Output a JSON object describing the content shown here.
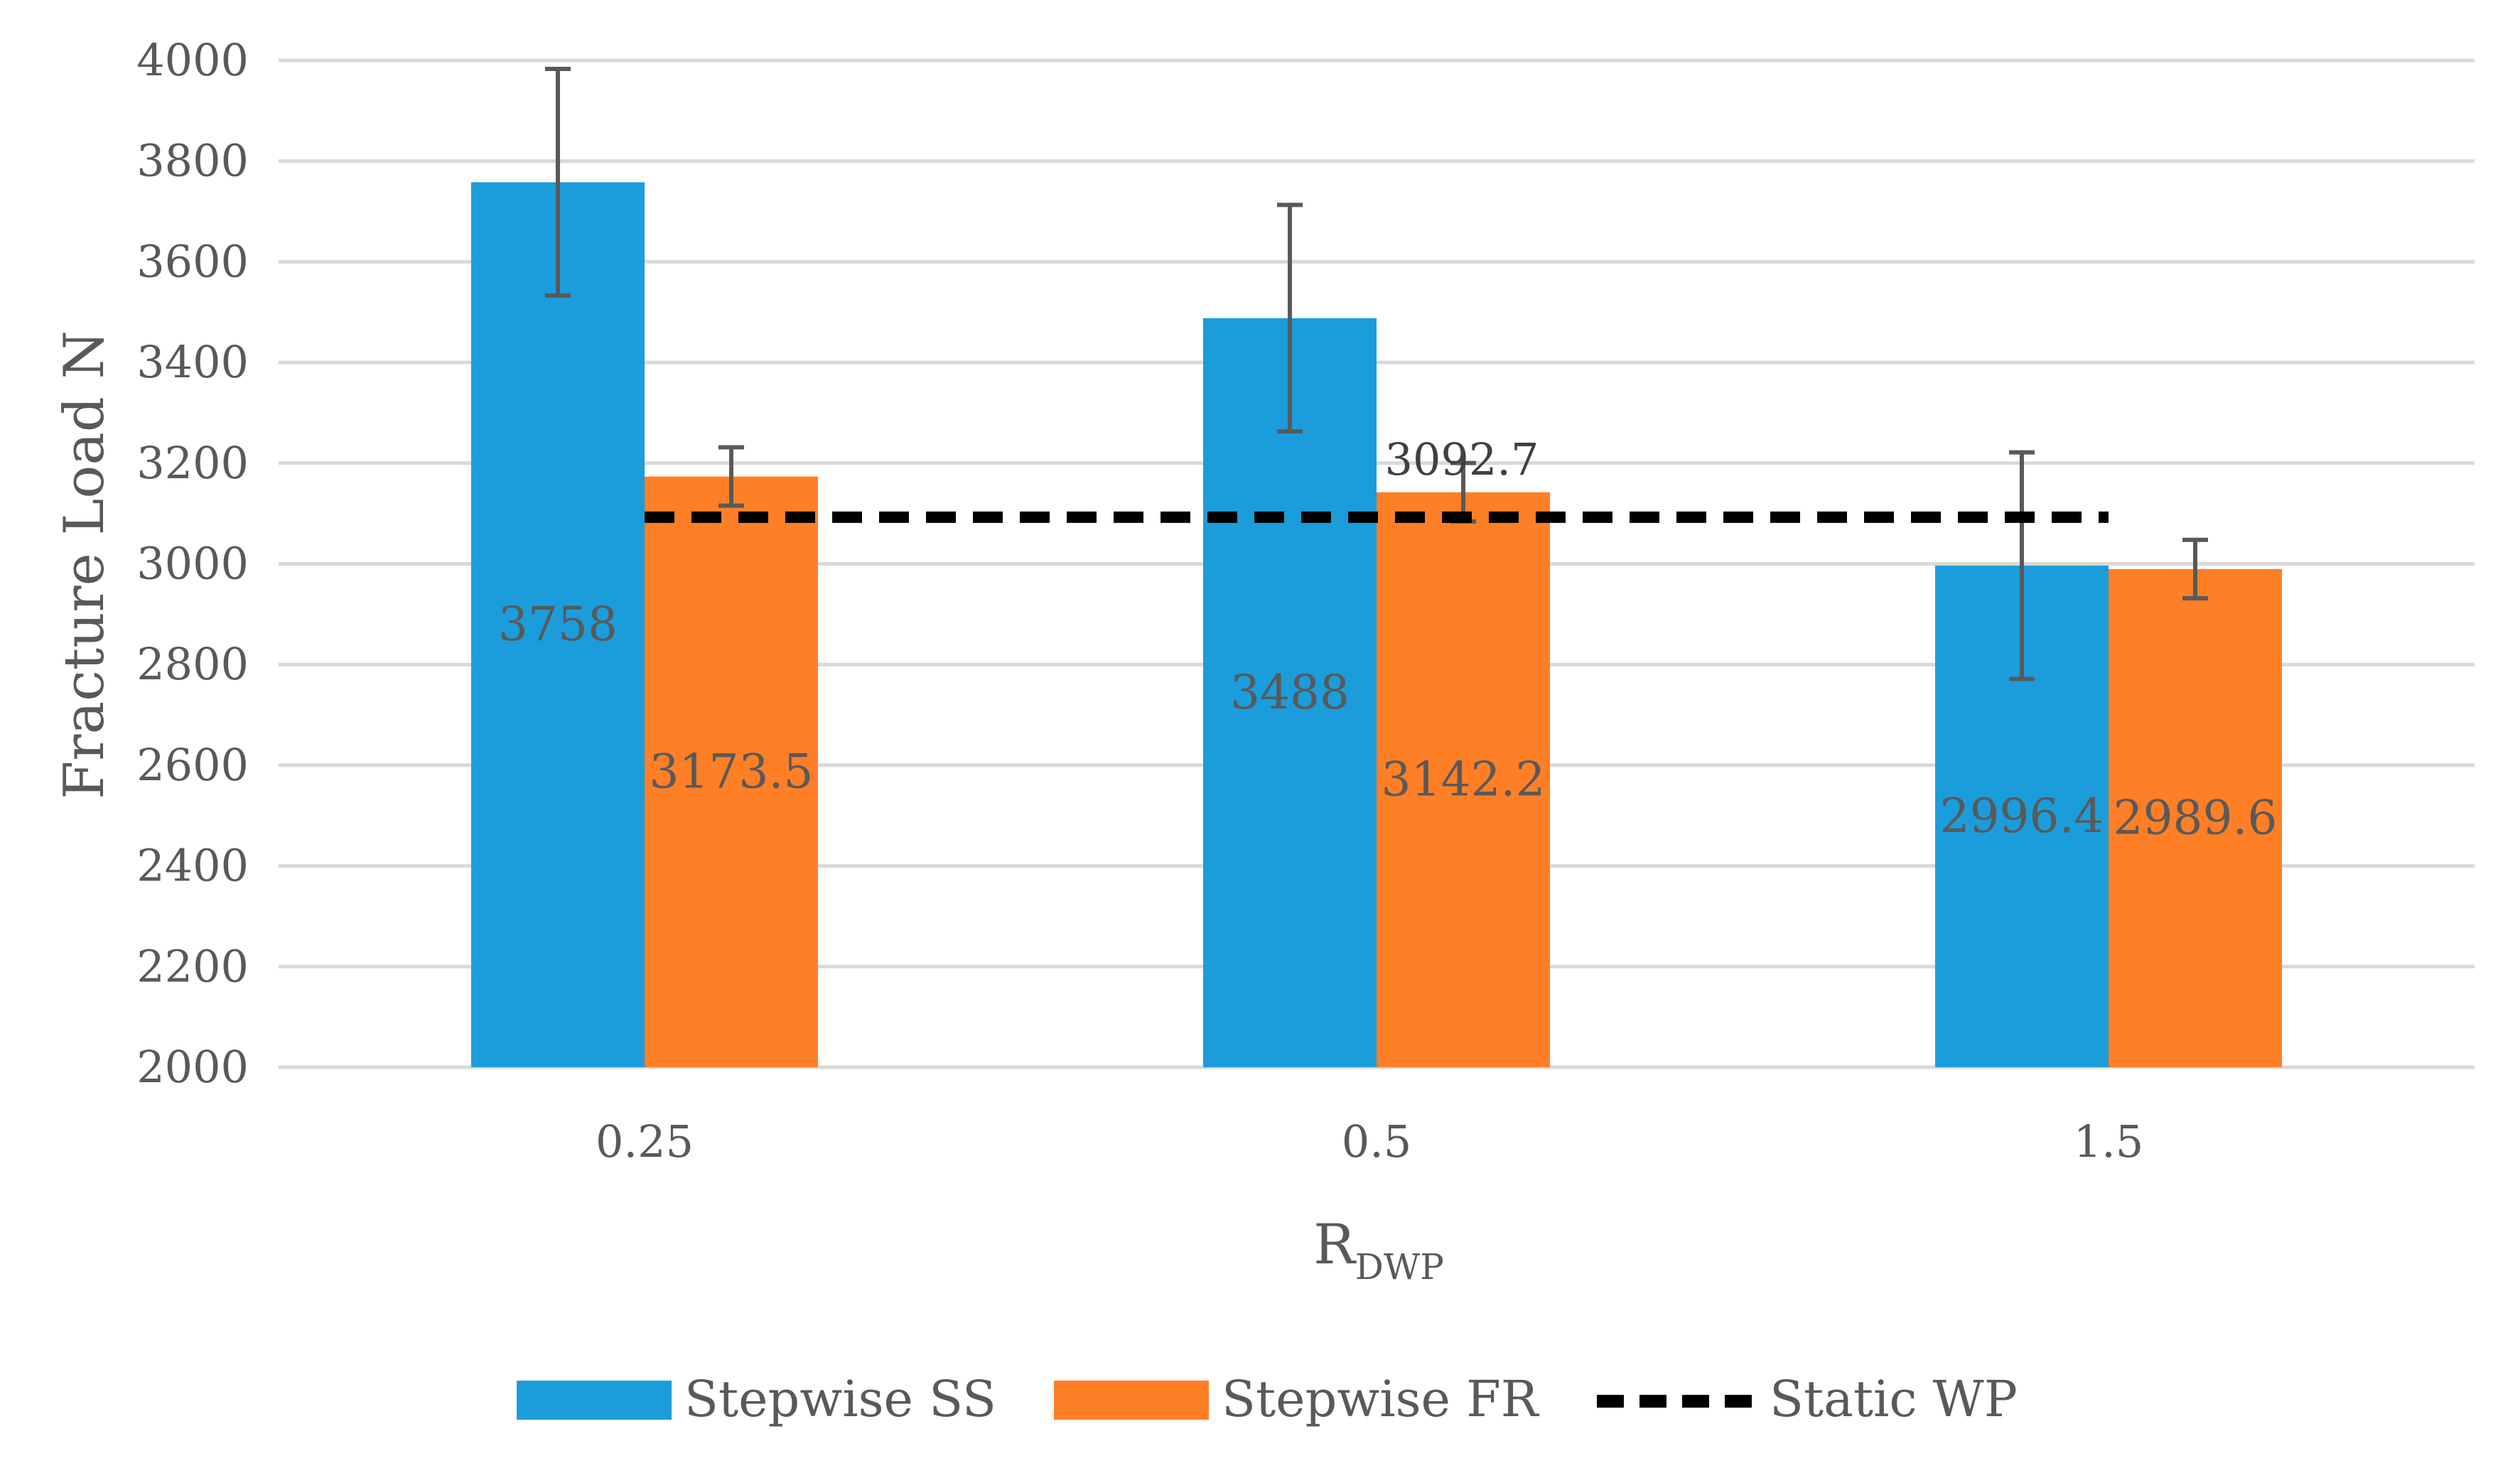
{
  "chart_data": {
    "type": "bar",
    "title": "",
    "categories": [
      "0.25",
      "0.5",
      "1.5"
    ],
    "series": [
      {
        "name": "Stepwise SS",
        "color": "#1b9ddb",
        "values": [
          3758,
          3488,
          2996.4
        ],
        "labels": [
          "3758",
          "3488",
          "2996.4"
        ],
        "error": [
          225,
          225,
          225
        ]
      },
      {
        "name": "Stepwise FR",
        "color": "#ff7f27",
        "values": [
          3173.5,
          3142.2,
          2989.6
        ],
        "labels": [
          "3173.5",
          "3142.2",
          "2989.6"
        ],
        "error": [
          58,
          58,
          58
        ]
      }
    ],
    "reference_line": {
      "name": "Static WP",
      "value": 3092.7,
      "label": "3092.7",
      "style": "dashed",
      "color": "#000000"
    },
    "ylabel": "Fracture Load N",
    "xlabel_main": "R",
    "xlabel_sub": "DWP",
    "ylim": [
      2000,
      4000
    ],
    "yticks": [
      "2000",
      "2200",
      "2400",
      "2600",
      "2800",
      "3000",
      "3200",
      "3400",
      "3600",
      "3800",
      "4000"
    ],
    "grid": true,
    "legend_position": "bottom"
  }
}
